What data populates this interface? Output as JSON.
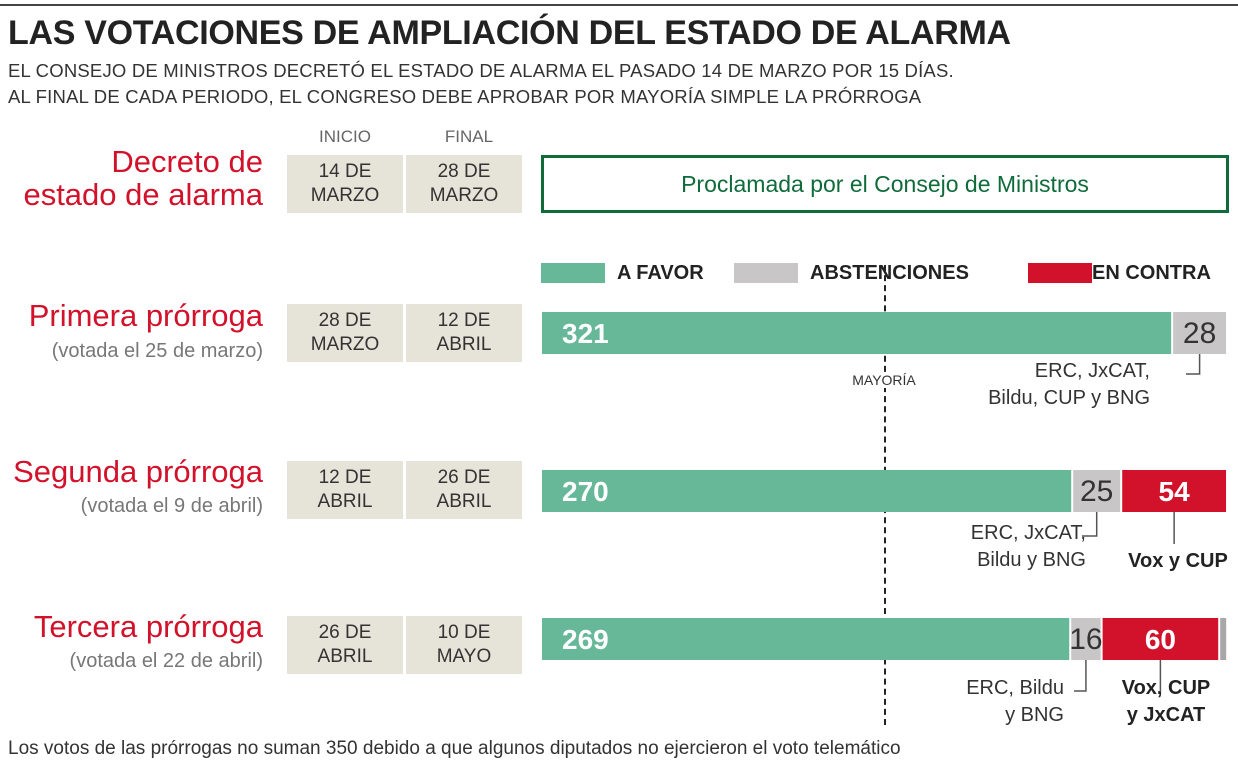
{
  "title": "LAS VOTACIONES DE AMPLIACIÓN DEL ESTADO DE ALARMA",
  "subtitle_lines": [
    "EL CONSEJO DE MINISTROS DECRETÓ EL ESTADO DE ALARMA EL PASADO 14 DE MARZO POR 15 DÍAS.",
    "AL FINAL DE CADA PERIODO, EL CONGRESO DEBE APROBAR POR MAYORÍA SIMPLE LA PRÓRROGA"
  ],
  "columns": {
    "start": "INICIO",
    "end": "FINAL"
  },
  "decree": {
    "name_lines": [
      "Decreto de",
      "estado de alarma"
    ],
    "start_lines": [
      "14 DE",
      "MARZO"
    ],
    "end_lines": [
      "28 DE",
      "MARZO"
    ],
    "text": "Proclamada por el Consejo de Ministros"
  },
  "legend": [
    {
      "key": "favor",
      "label": "A FAVOR",
      "color": "#67b898"
    },
    {
      "key": "abst",
      "label": "ABSTENCIONES",
      "color": "#c8c6c6"
    },
    {
      "key": "contra",
      "label": "EN CONTRA",
      "color": "#d2112a"
    }
  ],
  "majority_label": "MAYORÍA",
  "footer": "Los votos de las prórrogas no suman 350 debido a que algunos diputados no ejercieron el voto telemático",
  "colors": {
    "accent": "#d2112a",
    "decree_border": "#0f6b3a",
    "date_box": "#e6e3d8"
  },
  "rows": [
    {
      "name": "Primera prórroga",
      "sub": "(votada el 25 de marzo)",
      "start_lines": [
        "28 DE",
        "MARZO"
      ],
      "end_lines": [
        "12 DE",
        "ABRIL"
      ],
      "abst_note_lines": [
        "ERC, JxCAT,",
        "Bildu, CUP y BNG"
      ],
      "contra_note_lines": []
    },
    {
      "name": "Segunda prórroga",
      "sub": "(votada el 9 de abril)",
      "start_lines": [
        "12 DE",
        "ABRIL"
      ],
      "end_lines": [
        "26 DE",
        "ABRIL"
      ],
      "abst_note_lines": [
        "ERC, JxCAT,",
        "Bildu y BNG"
      ],
      "contra_note_lines": [
        "Vox y CUP"
      ]
    },
    {
      "name": "Tercera prórroga",
      "sub": "(votada el 22 de abril)",
      "start_lines": [
        "26 DE",
        "ABRIL"
      ],
      "end_lines": [
        "10 DE",
        "MAYO"
      ],
      "abst_note_lines": [
        "ERC, Bildu",
        "y BNG"
      ],
      "contra_note_lines": [
        "Vox, CUP",
        "y JxCAT"
      ]
    }
  ],
  "chart_data": {
    "type": "bar",
    "orientation": "horizontal",
    "stacked": true,
    "total_seats": 350,
    "categories": [
      "Primera prórroga",
      "Segunda prórroga",
      "Tercera prórroga"
    ],
    "series": [
      {
        "name": "A FAVOR",
        "values": [
          321,
          270,
          269
        ]
      },
      {
        "name": "ABSTENCIONES",
        "values": [
          28,
          25,
          16
        ]
      },
      {
        "name": "EN CONTRA",
        "values": [
          0,
          54,
          60
        ]
      }
    ],
    "majority_line": 176,
    "legend_position": "top"
  }
}
